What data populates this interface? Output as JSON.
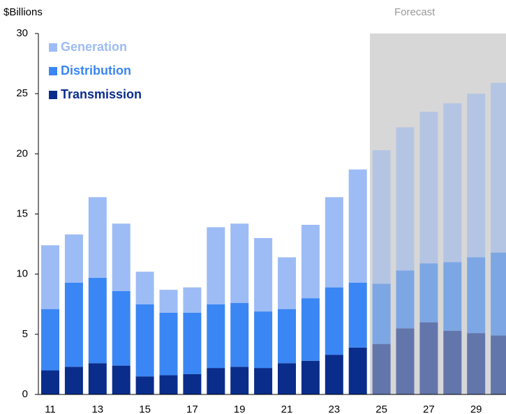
{
  "chart_data": {
    "type": "stacked_bar",
    "y_axis_label": "$Billions",
    "annotation": "Forecast",
    "categories": [
      "11",
      null,
      "13",
      null,
      "15",
      null,
      "17",
      null,
      "19",
      null,
      "21",
      null,
      "23",
      null,
      "25",
      null,
      "27",
      null,
      "29",
      null
    ],
    "series": [
      {
        "name": "Transmission",
        "color": "#0a2d8c",
        "values": [
          2.0,
          2.3,
          2.6,
          2.4,
          1.5,
          1.6,
          1.7,
          2.2,
          2.3,
          2.2,
          2.6,
          2.8,
          3.3,
          3.9,
          4.2,
          5.5,
          6.0,
          5.3,
          5.1,
          4.9
        ]
      },
      {
        "name": "Distribution",
        "color": "#3a86f4",
        "values": [
          5.1,
          7.0,
          7.1,
          6.2,
          6.0,
          5.2,
          5.1,
          5.3,
          5.3,
          4.7,
          4.5,
          5.2,
          5.6,
          5.4,
          5.0,
          4.8,
          4.9,
          5.7,
          6.3,
          6.9
        ]
      },
      {
        "name": "Generation",
        "color": "#9dbcf5",
        "values": [
          5.3,
          4.0,
          6.7,
          5.6,
          2.7,
          1.9,
          2.1,
          6.4,
          6.6,
          6.1,
          4.3,
          6.1,
          7.5,
          9.4,
          11.1,
          11.9,
          12.6,
          13.2,
          13.6,
          14.1
        ]
      }
    ],
    "ylim": [
      0,
      30
    ],
    "yticks": [
      0,
      5,
      10,
      15,
      20,
      25,
      30
    ]
  }
}
